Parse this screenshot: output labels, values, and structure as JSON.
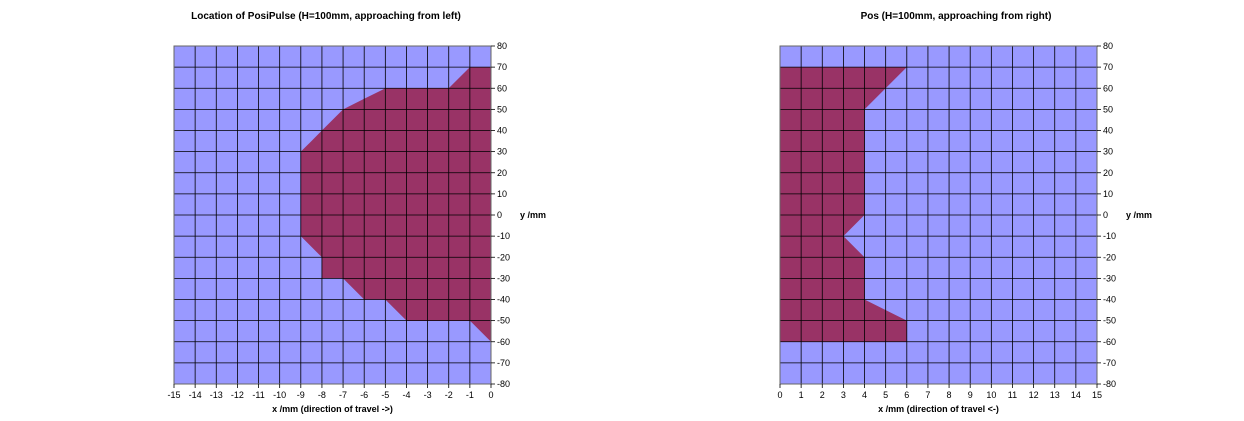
{
  "colors": {
    "background": "#ffffff",
    "plot_area": "#9999ff",
    "region_fill": "#993366",
    "grid": "#000000"
  },
  "chart_data": [
    {
      "type": "area",
      "title": "Location of PosiPulse (H=100mm, approaching from left)",
      "xlabel": "x /mm (direction of travel ->)",
      "ylabel": "y /mm",
      "xlim": [
        -15,
        0
      ],
      "ylim": [
        -80,
        80
      ],
      "x_ticks": [
        -15,
        -14,
        -13,
        -12,
        -11,
        -10,
        -9,
        -8,
        -7,
        -6,
        -5,
        -4,
        -3,
        -2,
        -1,
        0
      ],
      "y_ticks": [
        -80,
        -70,
        -60,
        -50,
        -40,
        -30,
        -20,
        -10,
        0,
        10,
        20,
        30,
        40,
        50,
        60,
        70,
        80
      ],
      "grid": true,
      "y_axis_side": "right",
      "region": [
        [
          0,
          70
        ],
        [
          -1,
          70
        ],
        [
          -2,
          60
        ],
        [
          -5,
          60
        ],
        [
          -6,
          55
        ],
        [
          -7,
          50
        ],
        [
          -8,
          40
        ],
        [
          -8.5,
          35
        ],
        [
          -9,
          30
        ],
        [
          -9,
          -10
        ],
        [
          -8,
          -20
        ],
        [
          -8,
          -30
        ],
        [
          -7,
          -30
        ],
        [
          -6,
          -40
        ],
        [
          -5,
          -40
        ],
        [
          -4,
          -50
        ],
        [
          -1,
          -50
        ],
        [
          0,
          -60
        ]
      ]
    },
    {
      "type": "area",
      "title": "Pos (H=100mm, approaching from right)",
      "xlabel": "x /mm (direction of travel <-)",
      "ylabel": "y /mm",
      "xlim": [
        0,
        15
      ],
      "ylim": [
        -80,
        80
      ],
      "x_ticks": [
        0,
        1,
        2,
        3,
        4,
        5,
        6,
        7,
        8,
        9,
        10,
        11,
        12,
        13,
        14,
        15
      ],
      "y_ticks": [
        -80,
        -70,
        -60,
        -50,
        -40,
        -30,
        -20,
        -10,
        0,
        10,
        20,
        30,
        40,
        50,
        60,
        70,
        80
      ],
      "grid": true,
      "y_axis_side": "right",
      "region": [
        [
          0,
          70
        ],
        [
          6,
          70
        ],
        [
          4,
          50
        ],
        [
          4,
          0
        ],
        [
          3,
          -10
        ],
        [
          4,
          -20
        ],
        [
          4,
          -40
        ],
        [
          6,
          -50
        ],
        [
          6,
          -60
        ],
        [
          0,
          -60
        ]
      ]
    }
  ]
}
